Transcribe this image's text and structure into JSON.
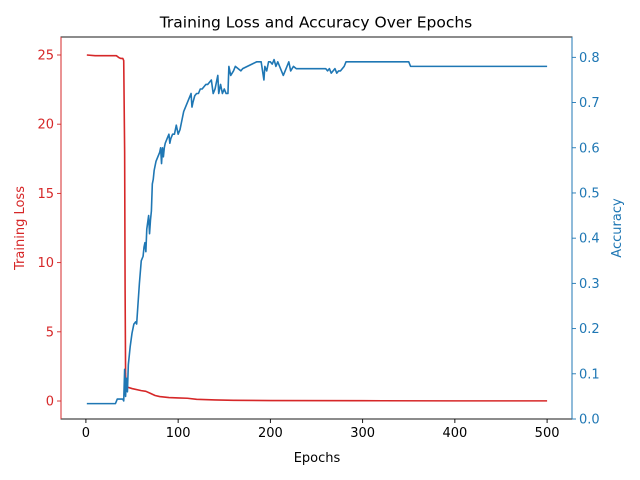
{
  "colors": {
    "loss": "#d62728",
    "accuracy": "#1f77b4",
    "axis": "#000000",
    "background": "#ffffff"
  },
  "chart_data": {
    "type": "line",
    "title": "Training Loss and Accuracy Over Epochs",
    "xlabel": "Epochs",
    "ylabel_left": "Training Loss",
    "ylabel_right": "Accuracy",
    "xlim": [
      -27,
      527
    ],
    "ylim_left": [
      -1.3,
      26.3
    ],
    "ylim_right": [
      0,
      0.845
    ],
    "x_ticks": [
      0,
      100,
      200,
      300,
      400,
      500
    ],
    "y_left_ticks": [
      0,
      5,
      10,
      15,
      20,
      25
    ],
    "y_right_ticks": [
      0.0,
      0.1,
      0.2,
      0.3,
      0.4,
      0.5,
      0.6,
      0.7,
      0.8
    ],
    "legend": "none",
    "grid": false,
    "series": [
      {
        "name": "Training Loss",
        "axis": "left",
        "x": [
          1,
          10,
          20,
          30,
          33,
          36,
          38,
          40,
          41,
          42,
          42.5,
          43,
          43.5,
          45,
          50,
          60,
          65,
          70,
          75,
          80,
          90,
          100,
          110,
          120,
          140,
          160,
          200,
          300,
          400,
          500
        ],
        "y": [
          25.0,
          24.95,
          24.95,
          24.95,
          24.95,
          24.8,
          24.75,
          24.75,
          24.6,
          18.0,
          8.0,
          2.0,
          1.1,
          1.0,
          0.9,
          0.75,
          0.7,
          0.55,
          0.4,
          0.32,
          0.25,
          0.22,
          0.2,
          0.12,
          0.08,
          0.05,
          0.03,
          0.02,
          0.01,
          0.01
        ]
      },
      {
        "name": "Accuracy",
        "axis": "right",
        "x": [
          1,
          10,
          20,
          30,
          32,
          34,
          36,
          38,
          40,
          41,
          42,
          43,
          44,
          45,
          46,
          47,
          48,
          50,
          52,
          54,
          55,
          56,
          58,
          60,
          62,
          63,
          64,
          65,
          66,
          68,
          69,
          70,
          71,
          72,
          73,
          74,
          76,
          78,
          80,
          81,
          82,
          83,
          84,
          85,
          86,
          88,
          90,
          91,
          92,
          94,
          96,
          98,
          100,
          102,
          104,
          106,
          108,
          110,
          112,
          114,
          115,
          116,
          118,
          120,
          122,
          124,
          126,
          128,
          130,
          132,
          134,
          136,
          138,
          140,
          142,
          143,
          144,
          145,
          146,
          148,
          150,
          152,
          154,
          155,
          156,
          157,
          160,
          162,
          165,
          168,
          170,
          175,
          180,
          185,
          190,
          193,
          194,
          196,
          198,
          200,
          202,
          204,
          206,
          208,
          210,
          212,
          214,
          216,
          218,
          220,
          222,
          225,
          228,
          230,
          240,
          250,
          260,
          262,
          264,
          266,
          270,
          272,
          274,
          276,
          278,
          280,
          282,
          284,
          290,
          300,
          320,
          340,
          350,
          351,
          352,
          400,
          450,
          500
        ],
        "y": [
          0.034,
          0.034,
          0.034,
          0.034,
          0.034,
          0.044,
          0.044,
          0.044,
          0.044,
          0.04,
          0.11,
          0.05,
          0.09,
          0.06,
          0.12,
          0.14,
          0.16,
          0.19,
          0.21,
          0.215,
          0.21,
          0.24,
          0.3,
          0.35,
          0.36,
          0.38,
          0.39,
          0.37,
          0.42,
          0.45,
          0.41,
          0.44,
          0.46,
          0.52,
          0.53,
          0.55,
          0.57,
          0.58,
          0.59,
          0.6,
          0.565,
          0.6,
          0.58,
          0.6,
          0.61,
          0.62,
          0.63,
          0.61,
          0.62,
          0.63,
          0.63,
          0.65,
          0.63,
          0.64,
          0.66,
          0.68,
          0.69,
          0.7,
          0.71,
          0.72,
          0.69,
          0.7,
          0.715,
          0.72,
          0.72,
          0.73,
          0.73,
          0.735,
          0.74,
          0.74,
          0.745,
          0.75,
          0.72,
          0.73,
          0.75,
          0.76,
          0.72,
          0.73,
          0.74,
          0.72,
          0.73,
          0.72,
          0.72,
          0.78,
          0.77,
          0.76,
          0.77,
          0.78,
          0.775,
          0.77,
          0.775,
          0.78,
          0.785,
          0.79,
          0.79,
          0.75,
          0.78,
          0.77,
          0.79,
          0.79,
          0.785,
          0.795,
          0.78,
          0.79,
          0.78,
          0.77,
          0.76,
          0.77,
          0.78,
          0.79,
          0.77,
          0.78,
          0.775,
          0.775,
          0.775,
          0.775,
          0.775,
          0.77,
          0.775,
          0.765,
          0.775,
          0.765,
          0.77,
          0.77,
          0.775,
          0.78,
          0.79,
          0.79,
          0.79,
          0.79,
          0.79,
          0.79,
          0.79,
          0.785,
          0.78,
          0.78,
          0.78,
          0.78
        ]
      }
    ]
  }
}
